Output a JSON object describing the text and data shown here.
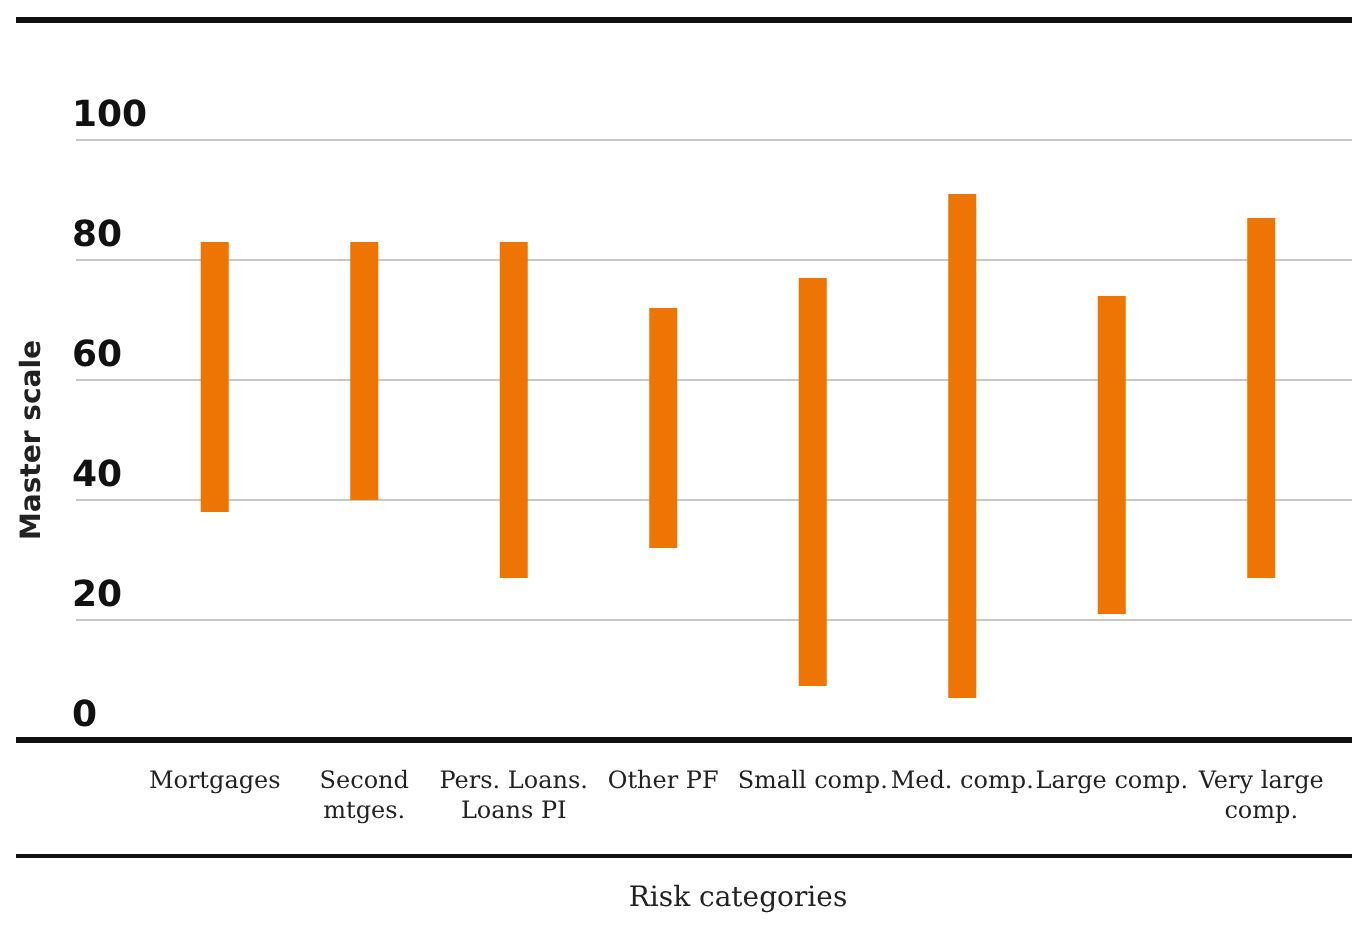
{
  "chart_data": {
    "type": "bar",
    "xlabel": "Risk categories",
    "ylabel": "Master scale",
    "categories": [
      "Mortgages",
      "Second mtges.",
      "Pers. Loans. Loans PI",
      "Other PF",
      "Small comp.",
      "Med. comp.",
      "Large comp.",
      "Very large comp."
    ],
    "base": [
      38,
      40,
      27,
      32,
      9,
      7,
      21,
      27
    ],
    "values": [
      45,
      43,
      56,
      40,
      68,
      84,
      53,
      60
    ],
    "color": "#ee7404",
    "ylim": [
      0,
      100
    ],
    "yticks": [
      0,
      20,
      40,
      60,
      80,
      100
    ],
    "grid": "y"
  }
}
